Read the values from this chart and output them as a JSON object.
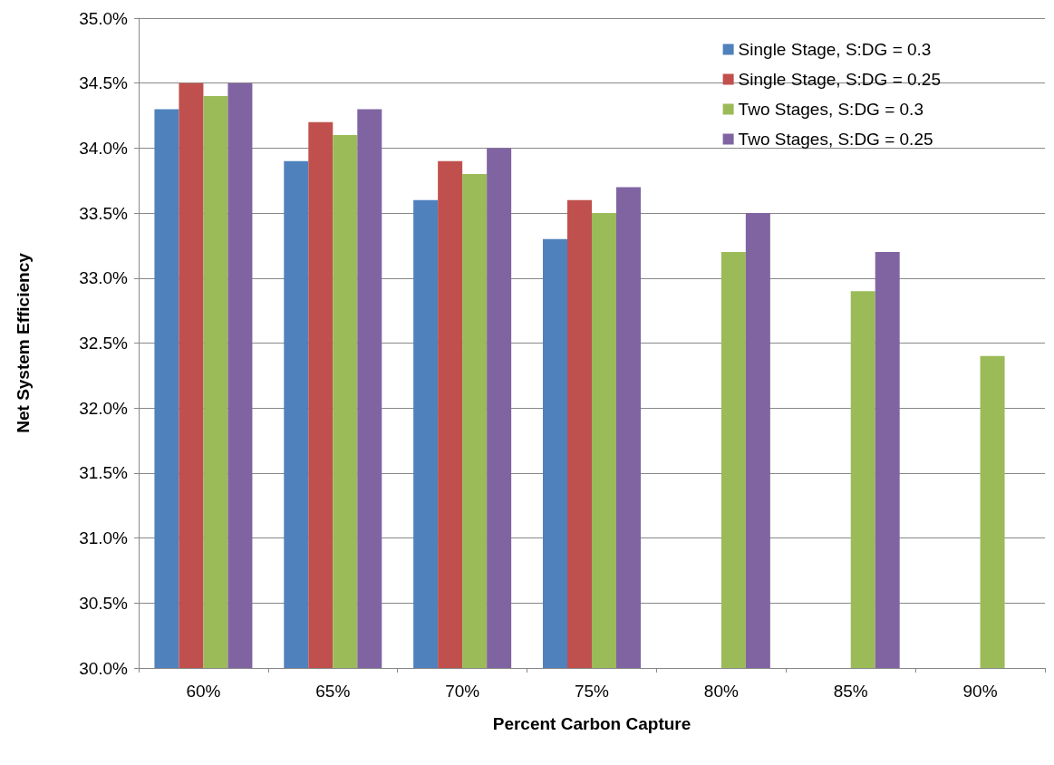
{
  "chart_data": {
    "type": "bar",
    "xlabel": "Percent Carbon Capture",
    "ylabel": "Net System Efficiency",
    "categories": [
      "60%",
      "65%",
      "70%",
      "75%",
      "80%",
      "85%",
      "90%"
    ],
    "series": [
      {
        "name": "Single Stage, S:DG = 0.3",
        "color": "#4f81bd",
        "values": [
          34.3,
          33.9,
          33.6,
          33.3,
          null,
          null,
          null
        ]
      },
      {
        "name": "Single Stage, S:DG = 0.25",
        "color": "#c0504d",
        "values": [
          34.5,
          34.2,
          33.9,
          33.6,
          null,
          null,
          null
        ]
      },
      {
        "name": "Two Stages, S:DG = 0.3",
        "color": "#9bbb59",
        "values": [
          34.4,
          34.1,
          33.8,
          33.5,
          33.2,
          32.9,
          32.4
        ]
      },
      {
        "name": "Two Stages, S:DG = 0.25",
        "color": "#8064a2",
        "values": [
          34.5,
          34.3,
          34.0,
          33.7,
          33.5,
          33.2,
          null
        ]
      }
    ],
    "ylim": [
      30,
      35
    ],
    "yticks": [
      {
        "value": 30,
        "label": "30.0%"
      },
      {
        "value": 30.5,
        "label": "30.5%"
      },
      {
        "value": 31,
        "label": "31.0%"
      },
      {
        "value": 31.5,
        "label": "31.5%"
      },
      {
        "value": 32,
        "label": "32.0%"
      },
      {
        "value": 32.5,
        "label": "32.5%"
      },
      {
        "value": 33,
        "label": "33.0%"
      },
      {
        "value": 33.5,
        "label": "33.5%"
      },
      {
        "value": 34,
        "label": "34.0%"
      },
      {
        "value": 34.5,
        "label": "34.5%"
      },
      {
        "value": 35,
        "label": "35.0%"
      }
    ],
    "grid": "y",
    "legend": "top right"
  }
}
